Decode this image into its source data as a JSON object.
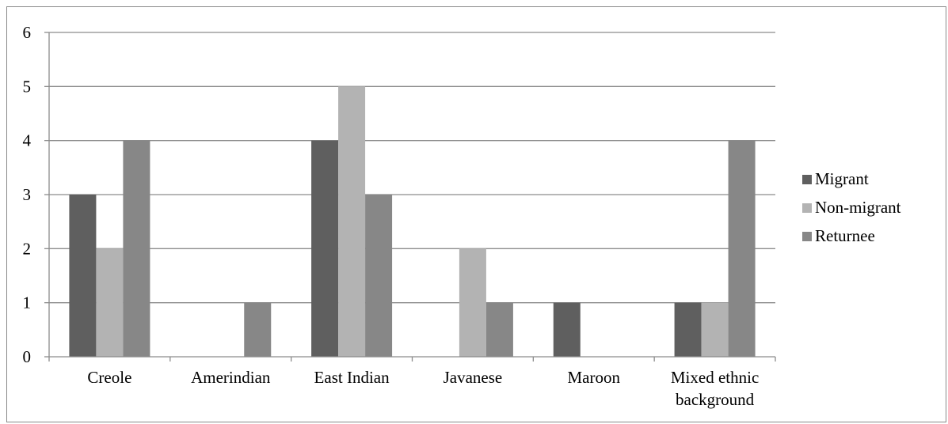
{
  "chart_data": {
    "type": "bar",
    "title": "",
    "xlabel": "",
    "ylabel": "",
    "categories": [
      [
        "Creole"
      ],
      [
        "Amerindian"
      ],
      [
        "East Indian"
      ],
      [
        "Javanese"
      ],
      [
        "Maroon"
      ],
      [
        "Mixed ethnic",
        "background"
      ]
    ],
    "series": [
      {
        "name": "Migrant",
        "color": "#5f5f5f",
        "values": [
          3,
          0,
          4,
          0,
          1,
          1
        ]
      },
      {
        "name": "Non-migrant",
        "color": "#b3b3b3",
        "values": [
          2,
          0,
          5,
          2,
          0,
          1
        ]
      },
      {
        "name": "Returnee",
        "color": "#878787",
        "values": [
          4,
          1,
          3,
          1,
          0,
          4
        ]
      }
    ],
    "ylim": [
      0,
      6
    ],
    "yticks": [
      0,
      1,
      2,
      3,
      4,
      5,
      6
    ],
    "grid": true,
    "legend": "right"
  }
}
